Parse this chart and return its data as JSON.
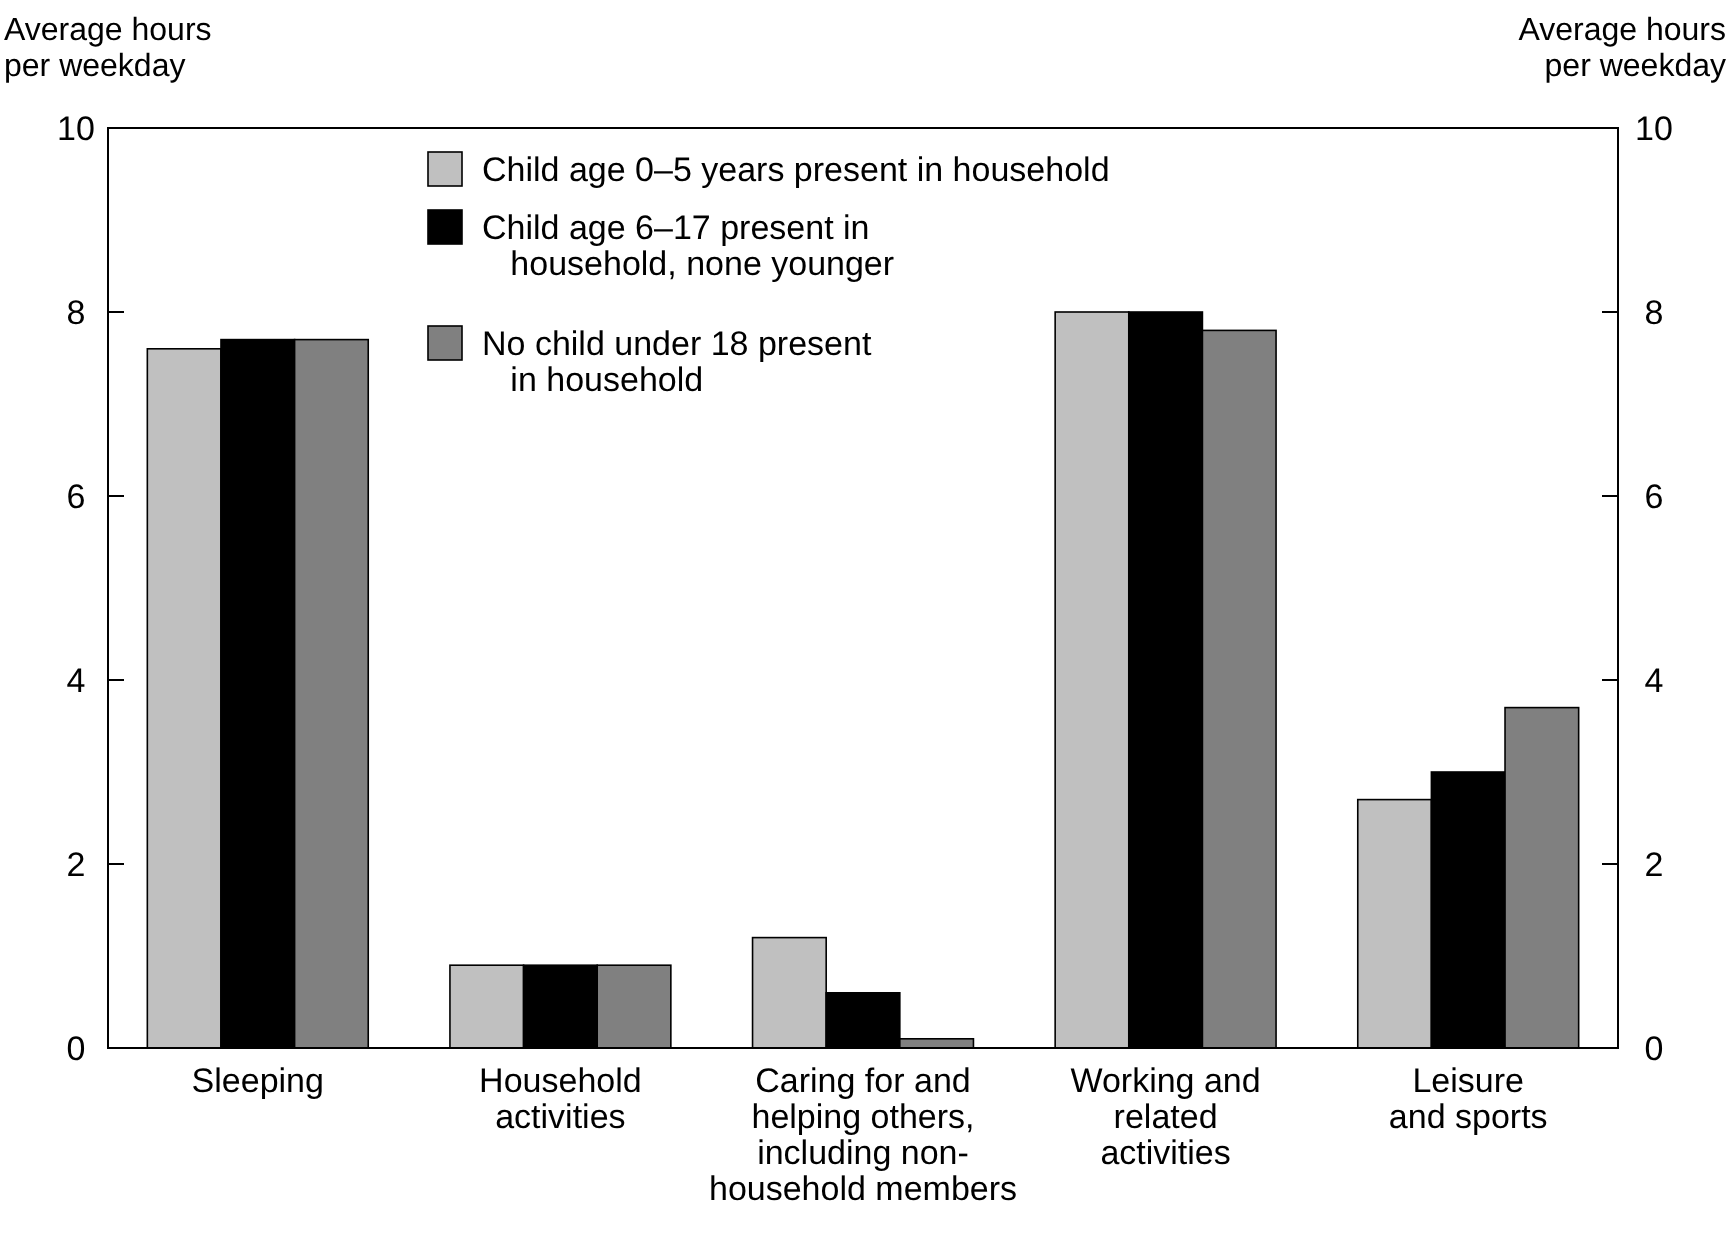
{
  "chart_data": {
    "type": "bar",
    "ylabel": "Average hours\nper weekday",
    "y2label": "Average hours\nper weekday",
    "categories": [
      "Sleeping",
      "Household\nactivities",
      "Caring for and\nhelping others,\nincluding non-\nhousehold members",
      "Working and\nrelated\nactivities",
      "Leisure\nand sports"
    ],
    "series": [
      {
        "name": "Child age 0–5 years present in household",
        "color": "#c0c0c0",
        "values": [
          7.6,
          0.9,
          1.2,
          8.0,
          2.7
        ]
      },
      {
        "name": "Child age 6–17 present in\n   household, none younger",
        "color": "#000000",
        "values": [
          7.7,
          0.9,
          0.6,
          8.0,
          3.0
        ]
      },
      {
        "name": "No child under 18 present\n   in household",
        "color": "#808080",
        "values": [
          7.7,
          0.9,
          0.1,
          7.8,
          3.7
        ]
      }
    ],
    "ylim": [
      0,
      10
    ],
    "yticks": [
      0,
      2,
      4,
      6,
      8,
      10
    ],
    "y2lim": [
      0,
      10
    ],
    "y2ticks": [
      0,
      2,
      4,
      6,
      8,
      10
    ],
    "legend": "top",
    "grid": false
  }
}
